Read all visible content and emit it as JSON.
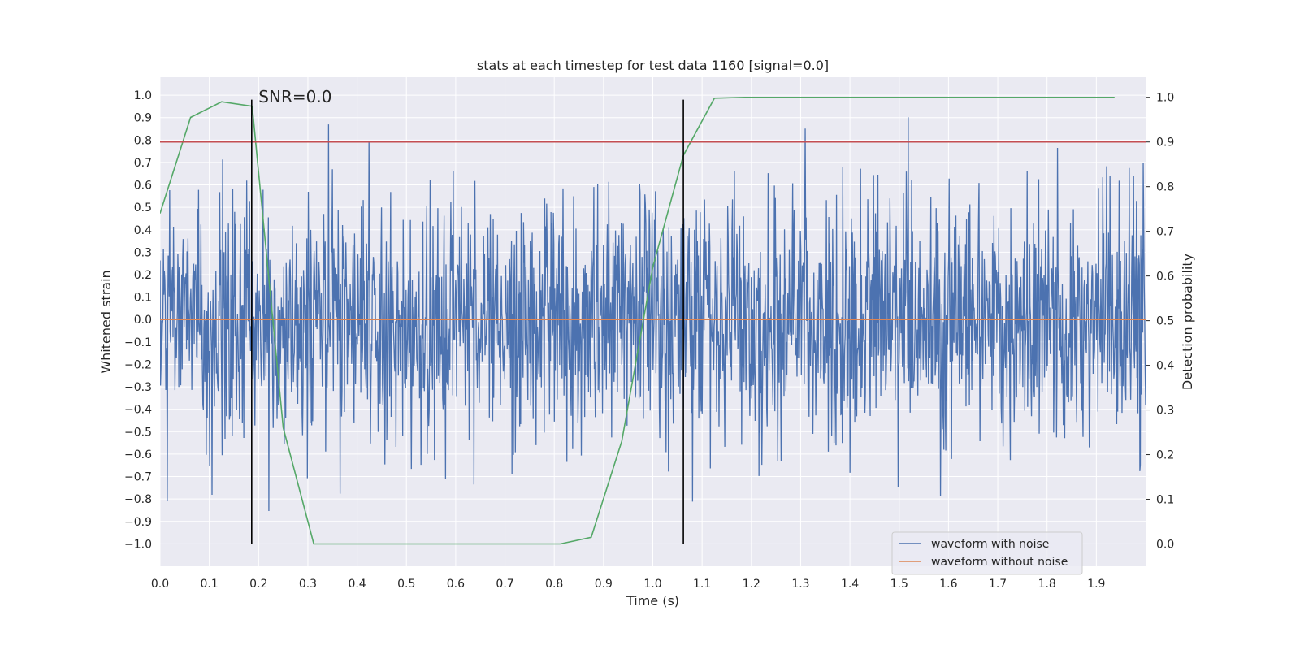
{
  "chart_data": {
    "type": "line",
    "title": "stats at each timestep for test data 1160 [signal=0.0]",
    "xlabel": "Time (s)",
    "ylabel_left": "Whitened strain",
    "ylabel_right": "Detection probability",
    "xlim": [
      0.0,
      2.0
    ],
    "ylim_left": [
      -1.1,
      1.08
    ],
    "ylim_right": [
      -0.05,
      1.045
    ],
    "x_ticks": [
      "0.0",
      "0.1",
      "0.2",
      "0.3",
      "0.4",
      "0.5",
      "0.6",
      "0.7",
      "0.8",
      "0.9",
      "1.0",
      "1.1",
      "1.2",
      "1.3",
      "1.4",
      "1.5",
      "1.6",
      "1.7",
      "1.8",
      "1.9"
    ],
    "x_tick_values": [
      0.0,
      0.1,
      0.2,
      0.3,
      0.4,
      0.5,
      0.6,
      0.7,
      0.8,
      0.9,
      1.0,
      1.1,
      1.2,
      1.3,
      1.4,
      1.5,
      1.6,
      1.7,
      1.8,
      1.9
    ],
    "y_left_ticks": [
      "1.0",
      "0.9",
      "0.8",
      "0.7",
      "0.6",
      "0.5",
      "0.4",
      "0.3",
      "0.2",
      "0.1",
      "0.0",
      "−0.1",
      "−0.2",
      "−0.3",
      "−0.4",
      "−0.5",
      "−0.6",
      "−0.7",
      "−0.8",
      "−0.9",
      "−1.0"
    ],
    "y_left_tick_values": [
      1.0,
      0.9,
      0.8,
      0.7,
      0.6,
      0.5,
      0.4,
      0.3,
      0.2,
      0.1,
      0.0,
      -0.1,
      -0.2,
      -0.3,
      -0.4,
      -0.5,
      -0.6,
      -0.7,
      -0.8,
      -0.9,
      -1.0
    ],
    "y_right_ticks": [
      "1.0",
      "0.9",
      "0.8",
      "0.7",
      "0.6",
      "0.5",
      "0.4",
      "0.3",
      "0.2",
      "0.1",
      "0.0"
    ],
    "y_right_tick_values": [
      1.0,
      0.9,
      0.8,
      0.7,
      0.6,
      0.5,
      0.4,
      0.3,
      0.2,
      0.1,
      0.0
    ],
    "grid": true,
    "legend_placement": "lower-right",
    "legend": [
      "waveform with noise",
      "waveform without noise"
    ],
    "annotations": [
      {
        "text": "SNR=0.0",
        "x": 0.2,
        "y": 0.99
      }
    ],
    "vertical_lines": [
      {
        "x": 0.186,
        "color": "#000000"
      },
      {
        "x": 1.062,
        "color": "#000000"
      }
    ],
    "threshold_line": {
      "axis": "right",
      "y": 0.9,
      "color": "#c44e52"
    },
    "series": [
      {
        "name": "waveform with noise",
        "axis": "left",
        "color": "#4c72b0",
        "generator": {
          "type": "noise",
          "t_start": 0.0,
          "t_end": 2.0,
          "n_points": 2048,
          "std": 0.27,
          "clip": [
            -1.0,
            0.98
          ],
          "seed": 1160
        }
      },
      {
        "name": "waveform without noise",
        "axis": "left",
        "color": "#dd8452",
        "x": [
          0.0,
          2.0
        ],
        "y": [
          0.0,
          0.0
        ]
      },
      {
        "axis": "right",
        "color": "#55a868",
        "x": [
          0.0,
          0.062,
          0.125,
          0.187,
          0.25,
          0.312,
          0.375,
          0.437,
          0.5,
          0.562,
          0.625,
          0.687,
          0.75,
          0.812,
          0.875,
          0.937,
          1.0,
          1.062,
          1.125,
          1.187,
          1.25,
          1.312,
          1.375,
          1.437,
          1.5,
          1.562,
          1.625,
          1.687,
          1.75,
          1.812,
          1.875,
          1.937
        ],
        "y": [
          0.74,
          0.955,
          0.99,
          0.98,
          0.26,
          0.0,
          0.0,
          0.0,
          0.0,
          0.0,
          0.0,
          0.0,
          0.0,
          0.0,
          0.015,
          0.23,
          0.62,
          0.87,
          0.998,
          1.0,
          1.0,
          1.0,
          1.0,
          1.0,
          1.0,
          1.0,
          1.0,
          1.0,
          1.0,
          1.0,
          1.0,
          1.0
        ]
      }
    ]
  }
}
